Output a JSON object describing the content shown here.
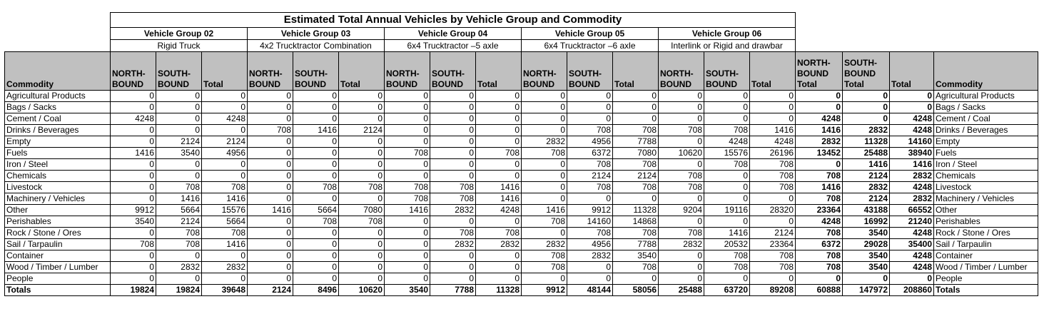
{
  "title": "Estimated Total Annual Vehicles by Vehicle Group and Commodity",
  "groups": [
    {
      "name": "Vehicle Group 02",
      "type": "Rigid Truck"
    },
    {
      "name": "Vehicle Group 03",
      "type": "4x2 Trucktractor Combination"
    },
    {
      "name": "Vehicle Group 04",
      "type": "6x4 Trucktractor –5 axle"
    },
    {
      "name": "Vehicle Group 05",
      "type": "6x4 Trucktractor –6 axle"
    },
    {
      "name": "Vehicle Group 06",
      "type": "Interlink or Rigid and drawbar"
    }
  ],
  "headers": {
    "commodity": "Commodity",
    "north": "NORTH-BOUND",
    "south": "SOUTH-BOUND",
    "total": "Total",
    "north_total": "NORTH-BOUND Total",
    "south_total": "SOUTH-BOUND Total",
    "grand_total": "Total",
    "commodity_right": "Commodity"
  },
  "rows": [
    {
      "commodity": "Agricultural Products",
      "values": [
        "0",
        "0",
        "0",
        "0",
        "0",
        "0",
        "0",
        "0",
        "0",
        "0",
        "0",
        "0",
        "0",
        "0",
        "0",
        "0",
        "0",
        "0"
      ]
    },
    {
      "commodity": "Bags / Sacks",
      "values": [
        "0",
        "0",
        "0",
        "0",
        "0",
        "0",
        "0",
        "0",
        "0",
        "0",
        "0",
        "0",
        "0",
        "0",
        "0",
        "0",
        "0",
        "0"
      ]
    },
    {
      "commodity": "Cement / Coal",
      "values": [
        "4248",
        "0",
        "4248",
        "0",
        "0",
        "0",
        "0",
        "0",
        "0",
        "0",
        "0",
        "0",
        "0",
        "0",
        "0",
        "4248",
        "0",
        "4248"
      ]
    },
    {
      "commodity": "Drinks / Beverages",
      "values": [
        "0",
        "0",
        "0",
        "708",
        "1416",
        "2124",
        "0",
        "0",
        "0",
        "0",
        "708",
        "708",
        "708",
        "708",
        "1416",
        "1416",
        "2832",
        "4248"
      ]
    },
    {
      "commodity": "Empty",
      "values": [
        "0",
        "2124",
        "2124",
        "0",
        "0",
        "0",
        "0",
        "0",
        "0",
        "2832",
        "4956",
        "7788",
        "0",
        "4248",
        "4248",
        "2832",
        "11328",
        "14160"
      ]
    },
    {
      "commodity": "Fuels",
      "values": [
        "1416",
        "3540",
        "4956",
        "0",
        "0",
        "0",
        "708",
        "0",
        "708",
        "708",
        "6372",
        "7080",
        "10620",
        "15576",
        "26196",
        "13452",
        "25488",
        "38940"
      ]
    },
    {
      "commodity": "Iron / Steel",
      "values": [
        "0",
        "0",
        "0",
        "0",
        "0",
        "0",
        "0",
        "0",
        "0",
        "0",
        "708",
        "708",
        "0",
        "708",
        "708",
        "0",
        "1416",
        "1416"
      ]
    },
    {
      "commodity": "Chemicals",
      "values": [
        "0",
        "0",
        "0",
        "0",
        "0",
        "0",
        "0",
        "0",
        "0",
        "0",
        "2124",
        "2124",
        "708",
        "0",
        "708",
        "708",
        "2124",
        "2832"
      ]
    },
    {
      "commodity": "Livestock",
      "values": [
        "0",
        "708",
        "708",
        "0",
        "708",
        "708",
        "708",
        "708",
        "1416",
        "0",
        "708",
        "708",
        "708",
        "0",
        "708",
        "1416",
        "2832",
        "4248"
      ]
    },
    {
      "commodity": "Machinery / Vehicles",
      "values": [
        "0",
        "1416",
        "1416",
        "0",
        "0",
        "0",
        "708",
        "708",
        "1416",
        "0",
        "0",
        "0",
        "0",
        "0",
        "0",
        "708",
        "2124",
        "2832"
      ]
    },
    {
      "commodity": "Other",
      "values": [
        "9912",
        "5664",
        "15576",
        "1416",
        "5664",
        "7080",
        "1416",
        "2832",
        "4248",
        "1416",
        "9912",
        "11328",
        "9204",
        "19116",
        "28320",
        "23364",
        "43188",
        "66552"
      ]
    },
    {
      "commodity": "Perishables",
      "values": [
        "3540",
        "2124",
        "5664",
        "0",
        "708",
        "708",
        "0",
        "0",
        "0",
        "708",
        "14160",
        "14868",
        "0",
        "0",
        "0",
        "4248",
        "16992",
        "21240"
      ]
    },
    {
      "commodity": "Rock / Stone / Ores",
      "values": [
        "0",
        "708",
        "708",
        "0",
        "0",
        "0",
        "0",
        "708",
        "708",
        "0",
        "708",
        "708",
        "708",
        "1416",
        "2124",
        "708",
        "3540",
        "4248"
      ]
    },
    {
      "commodity": "Sail / Tarpaulin",
      "values": [
        "708",
        "708",
        "1416",
        "0",
        "0",
        "0",
        "0",
        "2832",
        "2832",
        "2832",
        "4956",
        "7788",
        "2832",
        "20532",
        "23364",
        "6372",
        "29028",
        "35400"
      ]
    },
    {
      "commodity": "Container",
      "values": [
        "0",
        "0",
        "0",
        "0",
        "0",
        "0",
        "0",
        "0",
        "0",
        "708",
        "2832",
        "3540",
        "0",
        "708",
        "708",
        "708",
        "3540",
        "4248"
      ]
    },
    {
      "commodity": "Wood / Timber / Lumber",
      "values": [
        "0",
        "2832",
        "2832",
        "0",
        "0",
        "0",
        "0",
        "0",
        "0",
        "708",
        "0",
        "708",
        "0",
        "708",
        "708",
        "708",
        "3540",
        "4248"
      ]
    },
    {
      "commodity": "People",
      "values": [
        "0",
        "0",
        "0",
        "0",
        "0",
        "0",
        "0",
        "0",
        "0",
        "0",
        "0",
        "0",
        "0",
        "0",
        "0",
        "0",
        "0",
        "0"
      ]
    }
  ],
  "totals": {
    "label": "Totals",
    "values": [
      "19824",
      "19824",
      "39648",
      "2124",
      "8496",
      "10620",
      "3540",
      "7788",
      "11328",
      "9912",
      "48144",
      "58056",
      "25488",
      "63720",
      "89208",
      "60888",
      "147972",
      "208860"
    ]
  }
}
